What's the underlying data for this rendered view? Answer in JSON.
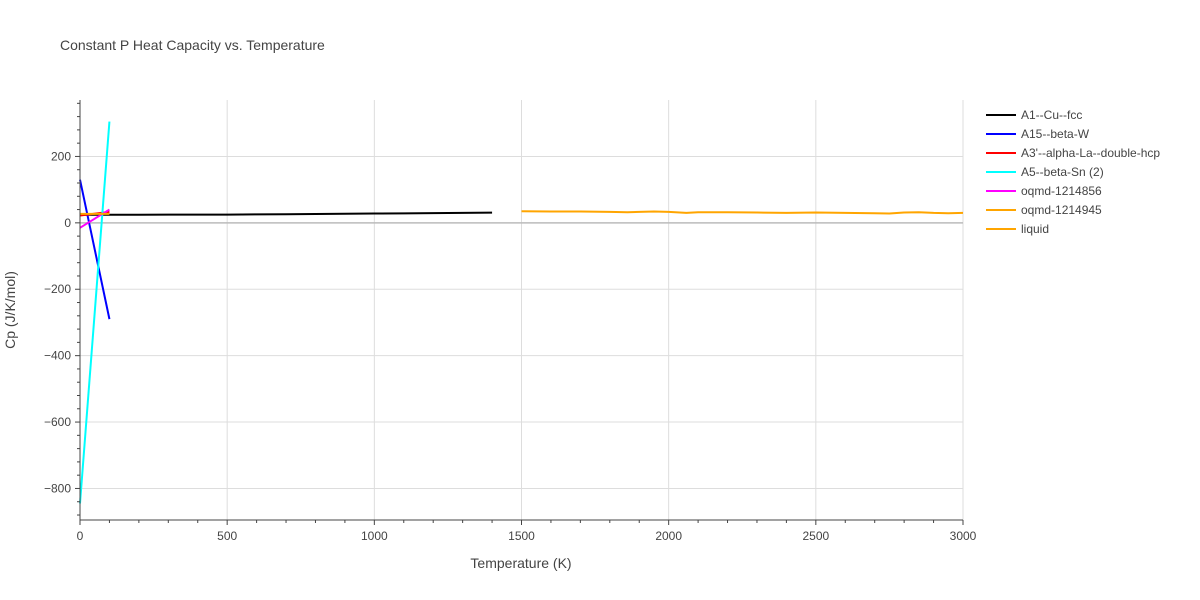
{
  "chart_data": {
    "type": "line",
    "title": "Constant P Heat Capacity vs. Temperature",
    "xlabel": "Temperature (K)",
    "ylabel": "Cp (J/K/mol)",
    "xlim": [
      0,
      3000
    ],
    "ylim": [
      -895,
      370
    ],
    "x_ticks": [
      0,
      500,
      1000,
      1500,
      2000,
      2500,
      3000
    ],
    "y_ticks": [
      -800,
      -600,
      -400,
      -200,
      0,
      200
    ],
    "grid": true,
    "legend_position": "top-right",
    "series": [
      {
        "name": "A1--Cu--fcc",
        "color": "#000000",
        "x": [
          0,
          100,
          200,
          300,
          400,
          500,
          550,
          600,
          700,
          800,
          900,
          1000,
          1100,
          1200,
          1300,
          1400
        ],
        "y": [
          24.5,
          24.5,
          24.5,
          24.6,
          24.7,
          24.8,
          25.0,
          25.4,
          26.0,
          26.6,
          27.3,
          28.0,
          28.6,
          29.3,
          30.0,
          30.8
        ]
      },
      {
        "name": "A15--beta-W",
        "color": "#0000ff",
        "x": [
          0,
          100
        ],
        "y": [
          130,
          -290
        ]
      },
      {
        "name": "A3'--alpha-La--double-hcp",
        "color": "#ff0000",
        "x": [
          0,
          100
        ],
        "y": [
          22,
          33
        ]
      },
      {
        "name": "A5--beta-Sn (2)",
        "color": "#00ffff",
        "x": [
          0,
          100
        ],
        "y": [
          -845,
          305
        ]
      },
      {
        "name": "oqmd-1214856",
        "color": "#ff00ff",
        "x": [
          0,
          100
        ],
        "y": [
          -15,
          40
        ]
      },
      {
        "name": "oqmd-1214945",
        "color": "#ffa500",
        "x": [
          0,
          100
        ],
        "y": [
          27,
          27
        ]
      },
      {
        "name": "liquid",
        "color": "#ffa500",
        "x": [
          1500,
          1600,
          1700,
          1800,
          1860,
          1900,
          1950,
          2000,
          2060,
          2100,
          2200,
          2300,
          2400,
          2500,
          2600,
          2700,
          2750,
          2800,
          2850,
          2900,
          2950,
          3000
        ],
        "y": [
          35,
          34,
          34,
          33,
          32,
          33,
          34,
          33,
          30,
          32,
          32,
          31,
          30,
          31,
          30,
          29,
          28,
          31,
          32,
          30,
          29,
          30
        ]
      }
    ]
  }
}
